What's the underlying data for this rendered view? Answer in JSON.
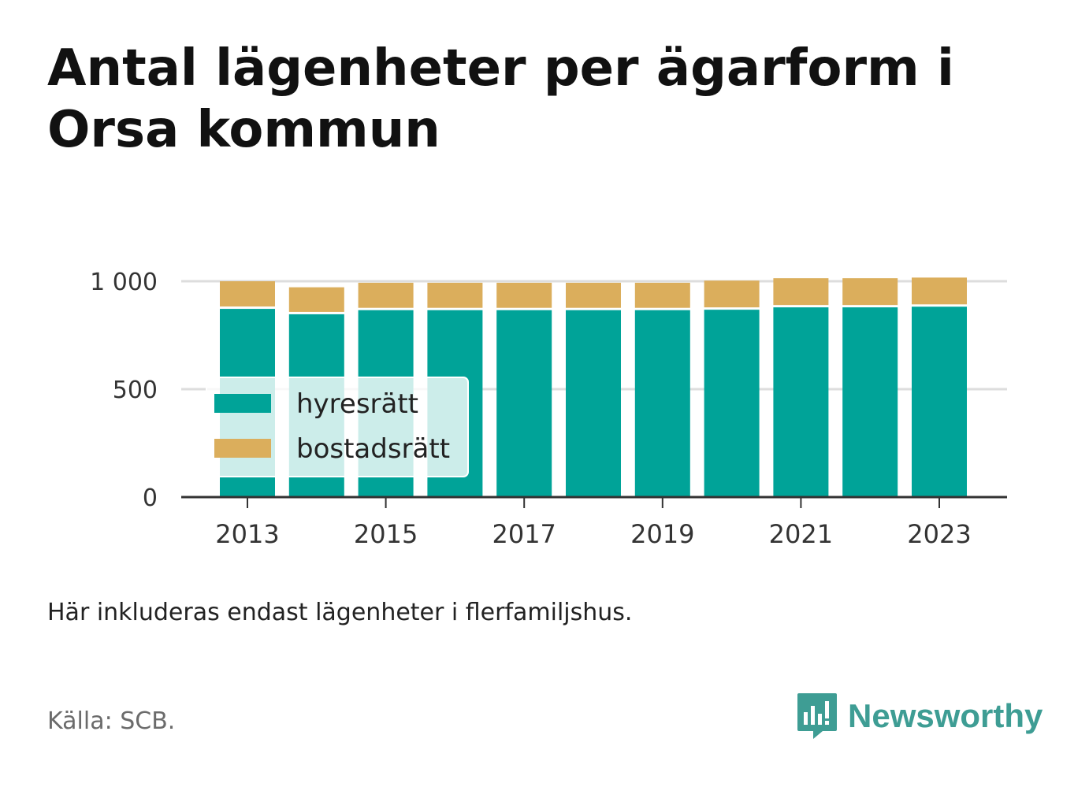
{
  "title": "Antal lägenheter per ägarform i Orsa kommun",
  "note": "Här inkluderas endast lägenheter i flerfamiljshus.",
  "source": "Källa: SCB.",
  "brand": {
    "name": "Newsworthy",
    "logo_icon": "bar-chart-speech-bubble-icon",
    "color": "#3e9d94"
  },
  "chart_data": {
    "type": "bar",
    "stacked": true,
    "categories": [
      "2013",
      "2014",
      "2015",
      "2016",
      "2017",
      "2018",
      "2019",
      "2020",
      "2021",
      "2022",
      "2023"
    ],
    "series": [
      {
        "name": "hyresrätt",
        "color": "#00a398",
        "values": [
          872,
          847,
          866,
          866,
          866,
          866,
          866,
          868,
          879,
          879,
          882
        ]
      },
      {
        "name": "bostadsrätt",
        "color": "#dbae5c",
        "values": [
          128,
          125,
          127,
          127,
          127,
          127,
          127,
          135,
          135,
          135,
          135
        ]
      }
    ],
    "y_ticks": [
      0,
      500,
      1000
    ],
    "y_tick_labels": [
      "0",
      "500",
      "1 000"
    ],
    "x_tick_labels": [
      "2013",
      "2015",
      "2017",
      "2019",
      "2021",
      "2023"
    ],
    "ylim": [
      0,
      1000
    ],
    "grid": "horizontal",
    "legend": "inside-left"
  }
}
